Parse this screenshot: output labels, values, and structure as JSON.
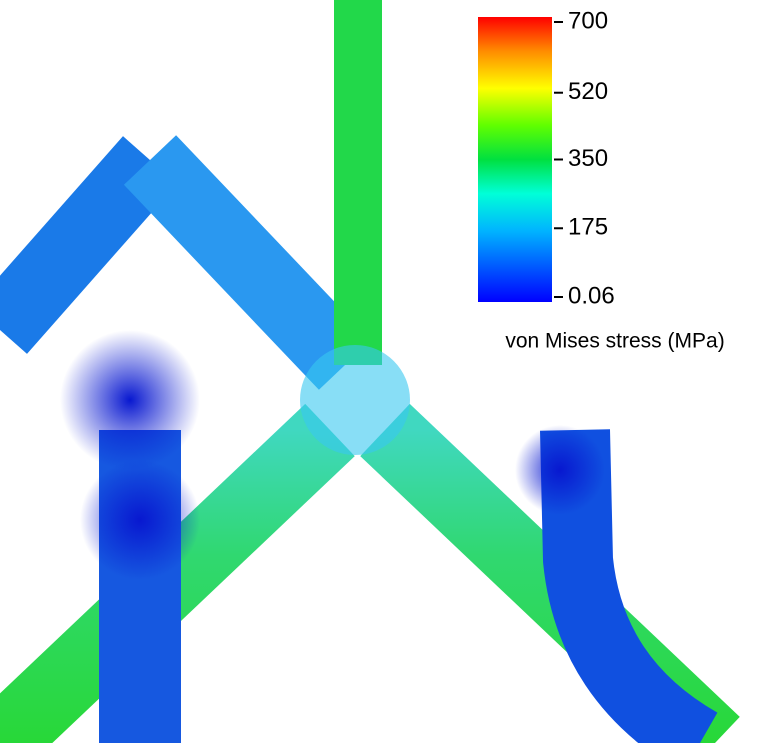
{
  "colorbar": {
    "label": "von Mises stress (MPa)",
    "lim": [
      0.06,
      700
    ],
    "ticks": [
      700,
      520,
      350,
      175,
      0.06
    ]
  }
}
